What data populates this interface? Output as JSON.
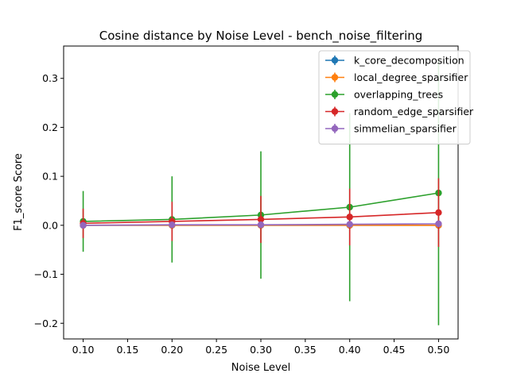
{
  "chart_data": {
    "type": "line",
    "title": "Cosine distance by Noise Level - bench_noise_filtering",
    "xlabel": "Noise Level",
    "ylabel": "F1_score Score",
    "xlim": [
      0.078,
      0.522
    ],
    "ylim": [
      -0.232,
      0.366
    ],
    "x_ticks": [
      0.1,
      0.15,
      0.2,
      0.25,
      0.3,
      0.35,
      0.4,
      0.45,
      0.5
    ],
    "x_tick_labels": [
      "0.10",
      "0.15",
      "0.20",
      "0.25",
      "0.30",
      "0.35",
      "0.40",
      "0.45",
      "0.50"
    ],
    "y_ticks": [
      -0.2,
      -0.1,
      0.0,
      0.1,
      0.2,
      0.3
    ],
    "y_tick_labels": [
      "−0.2",
      "−0.1",
      "0.0",
      "0.1",
      "0.2",
      "0.3"
    ],
    "grid": false,
    "legend_position": "top-right",
    "x": [
      0.1,
      0.2,
      0.3,
      0.4,
      0.5
    ],
    "series": [
      {
        "name": "k_core_decomposition",
        "color": "#1f77b4",
        "values": [
          0.0,
          0.0,
          0.0,
          0.0,
          0.0
        ],
        "errors": [
          0.002,
          0.002,
          0.002,
          0.002,
          0.002
        ]
      },
      {
        "name": "local_degree_sparsifier",
        "color": "#ff7f0e",
        "values": [
          0.0,
          0.0,
          0.0,
          0.0,
          0.0
        ],
        "errors": [
          0.002,
          0.002,
          0.002,
          0.002,
          0.002
        ]
      },
      {
        "name": "overlapping_trees",
        "color": "#2ca02c",
        "values": [
          0.008,
          0.012,
          0.021,
          0.037,
          0.066
        ],
        "errors": [
          0.062,
          0.088,
          0.13,
          0.192,
          0.27
        ]
      },
      {
        "name": "random_edge_sparsifier",
        "color": "#d62728",
        "values": [
          0.004,
          0.008,
          0.012,
          0.017,
          0.026
        ],
        "errors": [
          0.03,
          0.04,
          0.048,
          0.058,
          0.07
        ]
      },
      {
        "name": "simmelian_sparsifier",
        "color": "#9467bd",
        "values": [
          0.0,
          0.001,
          0.001,
          0.002,
          0.003
        ],
        "errors": [
          0.004,
          0.004,
          0.004,
          0.004,
          0.005
        ]
      }
    ]
  }
}
